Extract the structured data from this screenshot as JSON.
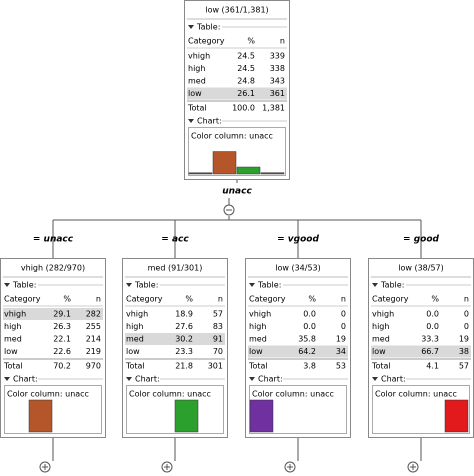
{
  "split_attribute": "unacc",
  "bar_colors": [
    "#7030a0",
    "#b5562a",
    "#2ca02c",
    "#e31a1c"
  ],
  "nodes": [
    {
      "title": "low (361/1,381)",
      "table_label": "Table:",
      "header": [
        "Category",
        "%",
        "n"
      ],
      "rows": [
        [
          "vhigh",
          "24.5",
          "339"
        ],
        [
          "high",
          "24.5",
          "338"
        ],
        [
          "med",
          "24.8",
          "343"
        ],
        [
          "low",
          "26.1",
          "361"
        ]
      ],
      "highlight": 3,
      "total": [
        "Total",
        "100.0",
        "1,381"
      ],
      "chart_label": "Chart:",
      "color_column": "Color column: unacc",
      "bars": [
        3.8,
        70.2,
        21.8,
        4.1
      ]
    },
    {
      "edge_label": "= unacc",
      "title": "vhigh (282/970)",
      "table_label": "Table:",
      "header": [
        "Category",
        "%",
        "n"
      ],
      "rows": [
        [
          "vhigh",
          "29.1",
          "282"
        ],
        [
          "high",
          "26.3",
          "255"
        ],
        [
          "med",
          "22.1",
          "214"
        ],
        [
          "low",
          "22.6",
          "219"
        ]
      ],
      "highlight": 0,
      "total": [
        "Total",
        "70.2",
        "970"
      ],
      "chart_label": "Chart:",
      "color_column": "Color column: unacc",
      "bars": [
        0,
        100,
        0,
        0
      ]
    },
    {
      "edge_label": "= acc",
      "title": "med (91/301)",
      "table_label": "Table:",
      "header": [
        "Category",
        "%",
        "n"
      ],
      "rows": [
        [
          "vhigh",
          "18.9",
          "57"
        ],
        [
          "high",
          "27.6",
          "83"
        ],
        [
          "med",
          "30.2",
          "91"
        ],
        [
          "low",
          "23.3",
          "70"
        ]
      ],
      "highlight": 2,
      "total": [
        "Total",
        "21.8",
        "301"
      ],
      "chart_label": "Chart:",
      "color_column": "Color column: unacc",
      "bars": [
        0,
        0,
        100,
        0
      ]
    },
    {
      "edge_label": "= vgood",
      "title": "low (34/53)",
      "table_label": "Table:",
      "header": [
        "Category",
        "%",
        "n"
      ],
      "rows": [
        [
          "vhigh",
          "0.0",
          "0"
        ],
        [
          "high",
          "0.0",
          "0"
        ],
        [
          "med",
          "35.8",
          "19"
        ],
        [
          "low",
          "64.2",
          "34"
        ]
      ],
      "highlight": 3,
      "total": [
        "Total",
        "3.8",
        "53"
      ],
      "chart_label": "Chart:",
      "color_column": "Color column: unacc",
      "bars": [
        100,
        0,
        0,
        0
      ]
    },
    {
      "edge_label": "= good",
      "title": "low (38/57)",
      "table_label": "Table:",
      "header": [
        "Category",
        "%",
        "n"
      ],
      "rows": [
        [
          "vhigh",
          "0.0",
          "0"
        ],
        [
          "high",
          "0.0",
          "0"
        ],
        [
          "med",
          "33.3",
          "19"
        ],
        [
          "low",
          "66.7",
          "38"
        ]
      ],
      "highlight": 3,
      "total": [
        "Total",
        "4.1",
        "57"
      ],
      "chart_label": "Chart:",
      "color_column": "Color column: unacc",
      "bars": [
        0,
        0,
        0,
        100
      ]
    }
  ]
}
